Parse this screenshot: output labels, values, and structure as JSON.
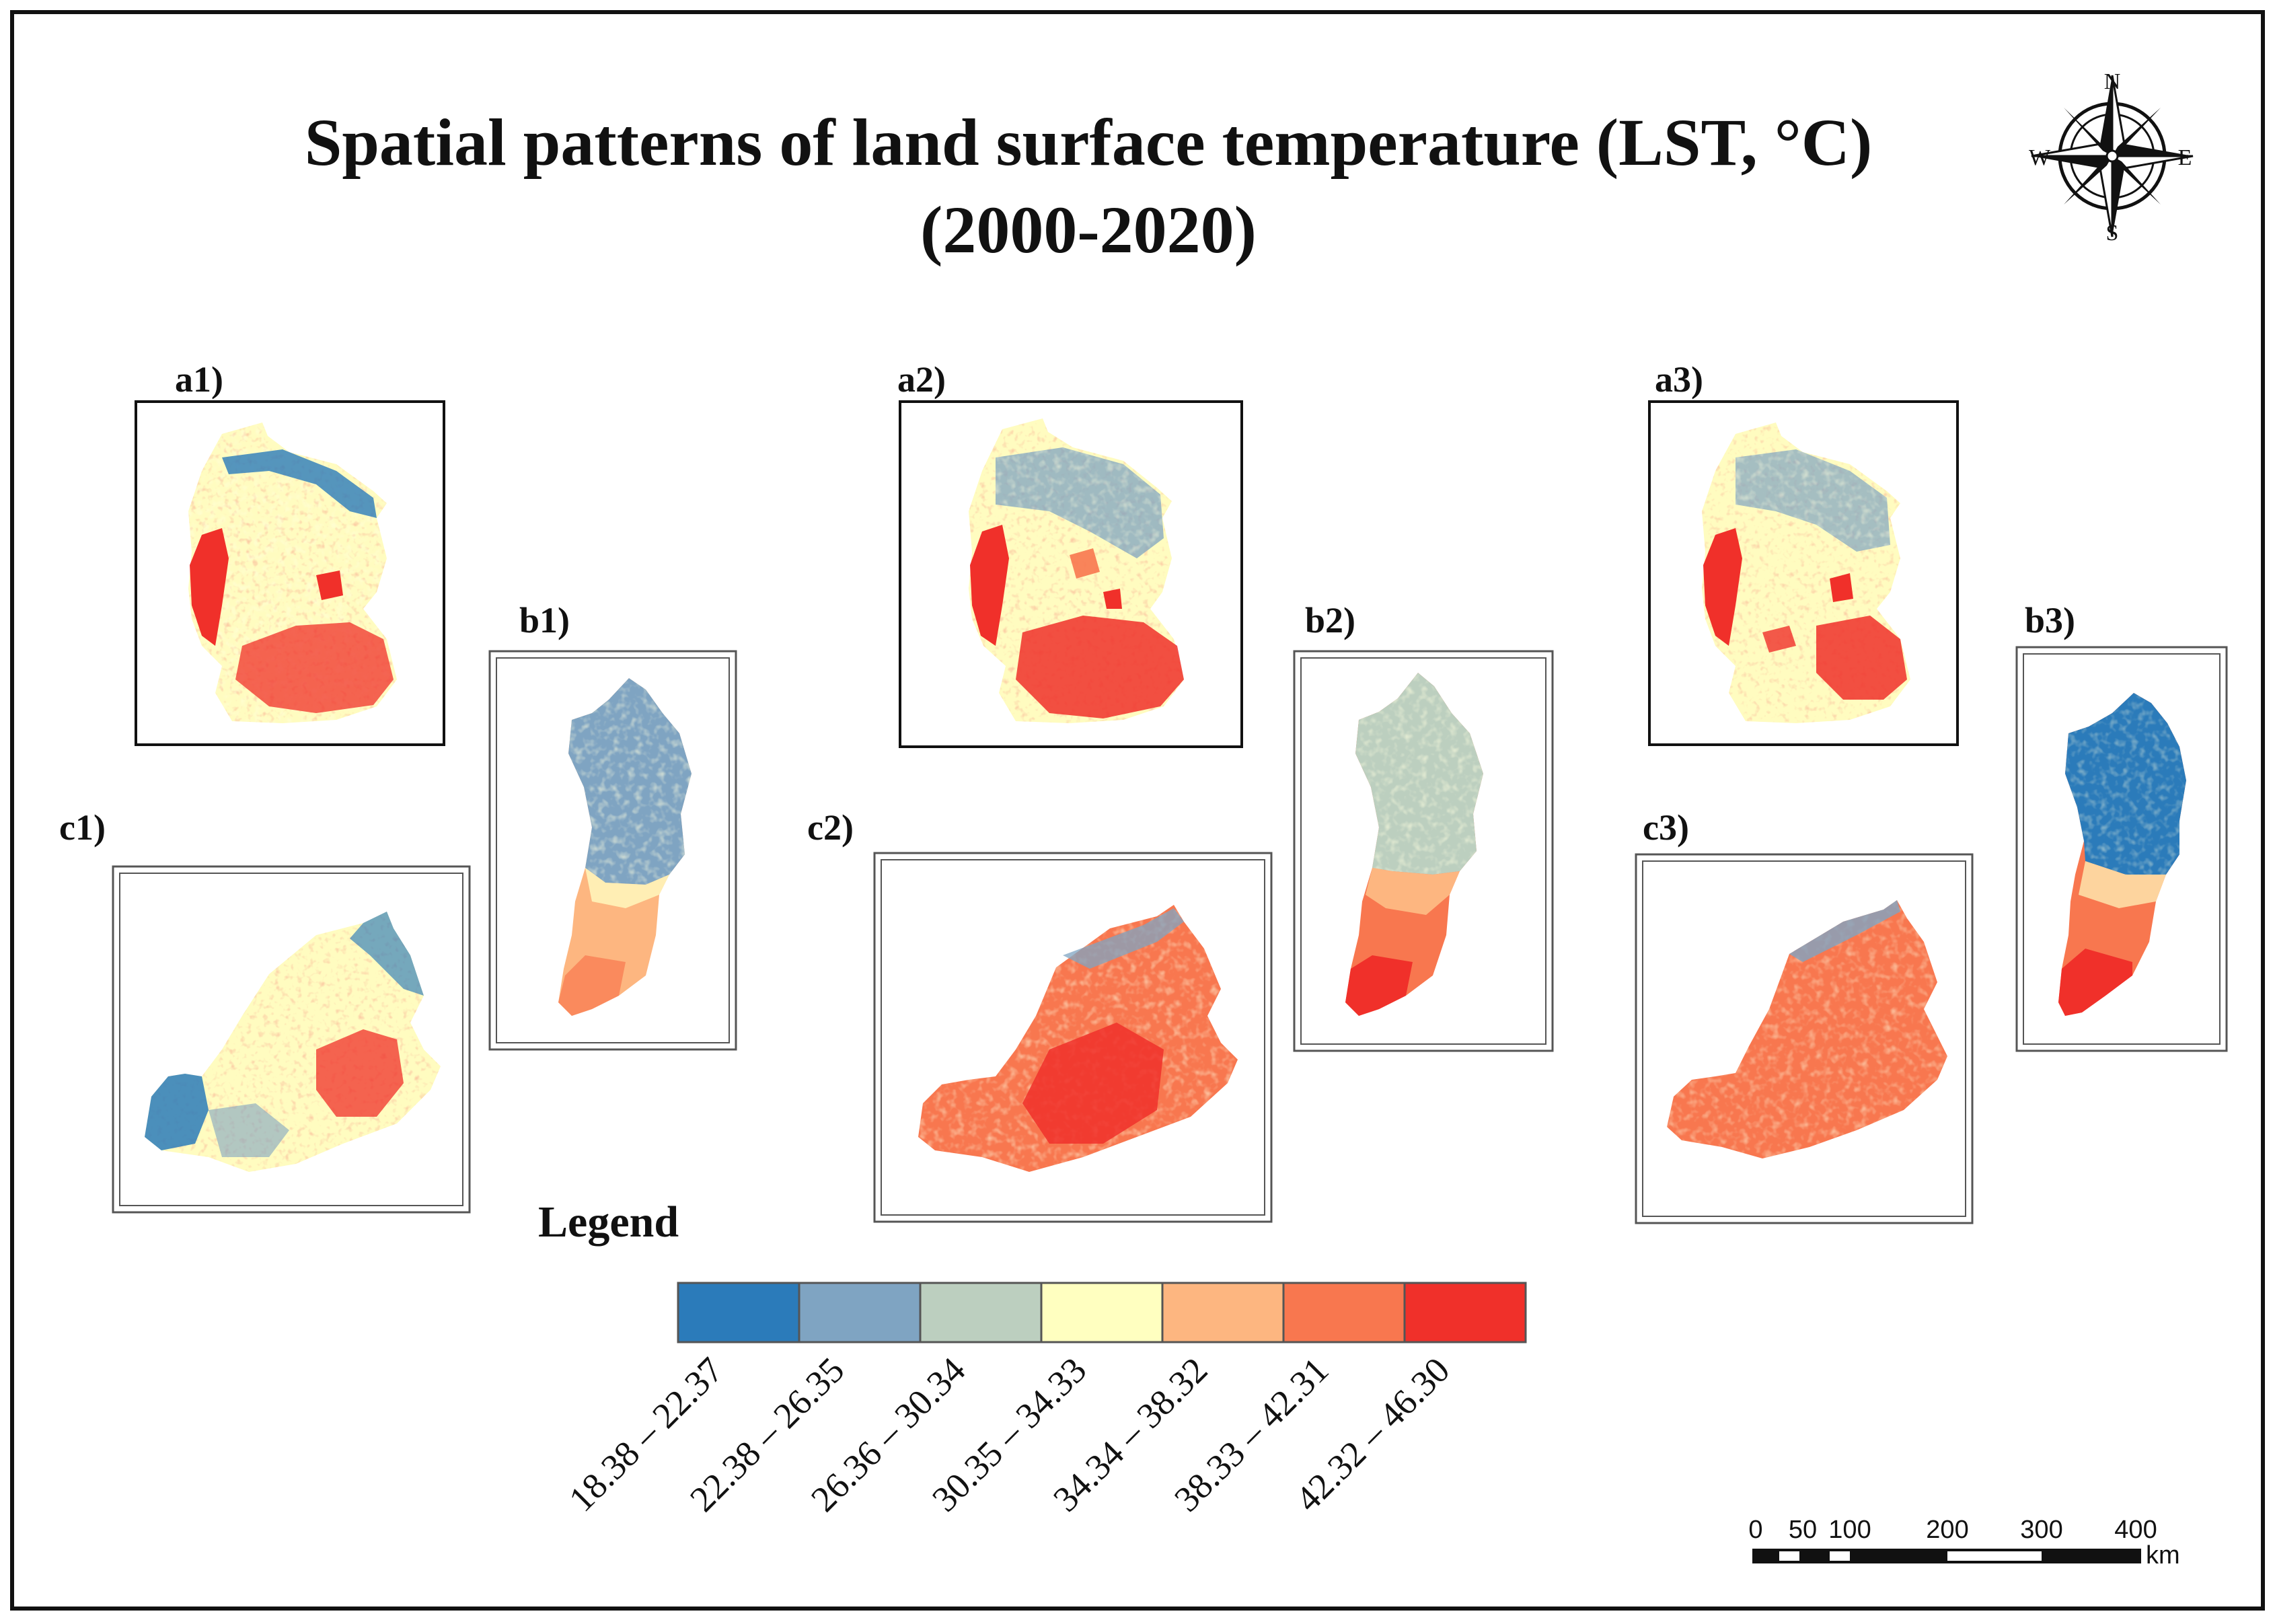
{
  "title": {
    "line1": "Spatial patterns of land surface temperature (LST, °C)",
    "line2": "(2000-2020)"
  },
  "compass": {
    "n": "N",
    "s": "S",
    "e": "E",
    "w": "W"
  },
  "panels": {
    "a1": "a1)",
    "b1": "b1)",
    "c1": "c1)",
    "a2": "a2)",
    "b2": "b2)",
    "c2": "c2)",
    "a3": "a3)",
    "b3": "b3)",
    "c3": "c3)"
  },
  "legend": {
    "title": "Legend",
    "classes": [
      {
        "label": "18.38 – 22.37",
        "color": "#2b7bba"
      },
      {
        "label": "22.38 – 26.35",
        "color": "#7fa4c2"
      },
      {
        "label": "26.36 – 30.34",
        "color": "#bccfbf"
      },
      {
        "label": "30.35 – 34.33",
        "color": "#ffffc0"
      },
      {
        "label": "34.34 – 38.32",
        "color": "#fdb680"
      },
      {
        "label": "38.33 – 42.31",
        "color": "#f8774f"
      },
      {
        "label": "42.32 – 46.30",
        "color": "#f0302a"
      }
    ]
  },
  "scalebar": {
    "ticks": [
      "0",
      "50",
      "100",
      "200",
      "300",
      "400"
    ],
    "unit": "km"
  }
}
